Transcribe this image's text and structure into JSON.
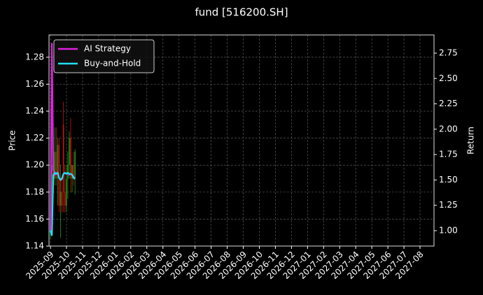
{
  "chart_data": {
    "type": "candlestick",
    "title": "fund [516200.SH]",
    "ylabel": "Price",
    "y2label": "Return",
    "x": [
      0.0,
      0.09,
      0.18,
      0.27,
      0.36,
      0.45,
      0.54,
      0.63,
      0.72,
      0.81,
      0.9,
      0.99,
      1.08,
      1.17,
      1.26,
      1.35,
      1.44,
      1.53
    ],
    "open": [
      1.15,
      1.16,
      1.2,
      1.19,
      1.21,
      1.19,
      1.215,
      1.17,
      1.18,
      1.23,
      1.18,
      1.17,
      1.19,
      1.2,
      1.22,
      1.19,
      1.2,
      1.19
    ],
    "high": [
      1.165,
      1.27,
      1.205,
      1.228,
      1.228,
      1.22,
      1.22,
      1.2,
      1.19,
      1.247,
      1.2,
      1.2,
      1.21,
      1.225,
      1.235,
      1.2,
      1.21,
      1.212
    ],
    "low": [
      1.145,
      1.155,
      1.18,
      1.185,
      1.185,
      1.17,
      1.165,
      1.146,
      1.165,
      1.165,
      1.165,
      1.165,
      1.175,
      1.19,
      1.18,
      1.18,
      1.185,
      1.178
    ],
    "close": [
      1.16,
      1.2,
      1.19,
      1.21,
      1.19,
      1.215,
      1.17,
      1.18,
      1.17,
      1.18,
      1.17,
      1.19,
      1.2,
      1.22,
      1.19,
      1.2,
      1.19,
      1.21
    ],
    "up_color": "#1a9a1a",
    "down_color": "#d01010",
    "series": [
      {
        "name": "AI Strategy",
        "color": "#e020e0",
        "axis": "y2",
        "values": [
          1.0,
          2.85,
          1.6,
          1.55,
          1.57,
          1.56,
          1.52,
          1.5,
          1.52,
          1.56,
          1.57,
          1.56,
          1.57,
          1.55,
          1.56,
          1.55,
          1.53,
          1.52
        ]
      },
      {
        "name": "Buy-and-Hold",
        "color": "#20e0f0",
        "axis": "y2",
        "values": [
          1.0,
          0.95,
          1.55,
          1.57,
          1.56,
          1.57,
          1.52,
          1.5,
          1.51,
          1.56,
          1.57,
          1.56,
          1.57,
          1.56,
          1.56,
          1.55,
          1.52,
          1.51
        ]
      }
    ],
    "xlim": [
      -0.09,
      23.87
    ],
    "xticks": [
      {
        "value": 0,
        "label": "2025-09"
      },
      {
        "value": 1,
        "label": "2025-10"
      },
      {
        "value": 2,
        "label": "2025-11"
      },
      {
        "value": 3,
        "label": "2025-12"
      },
      {
        "value": 4,
        "label": "2026-01"
      },
      {
        "value": 5,
        "label": "2026-02"
      },
      {
        "value": 6,
        "label": "2026-03"
      },
      {
        "value": 7,
        "label": "2026-04"
      },
      {
        "value": 8,
        "label": "2026-05"
      },
      {
        "value": 9,
        "label": "2026-06"
      },
      {
        "value": 10,
        "label": "2026-07"
      },
      {
        "value": 11,
        "label": "2026-08"
      },
      {
        "value": 12,
        "label": "2026-09"
      },
      {
        "value": 13,
        "label": "2026-10"
      },
      {
        "value": 14,
        "label": "2026-11"
      },
      {
        "value": 15,
        "label": "2026-12"
      },
      {
        "value": 16,
        "label": "2027-01"
      },
      {
        "value": 17,
        "label": "2027-02"
      },
      {
        "value": 18,
        "label": "2027-03"
      },
      {
        "value": 19,
        "label": "2027-04"
      },
      {
        "value": 20,
        "label": "2027-05"
      },
      {
        "value": 21,
        "label": "2027-06"
      },
      {
        "value": 22,
        "label": "2027-07"
      },
      {
        "value": 23,
        "label": "2027-08"
      }
    ],
    "ylim": [
      1.14,
      1.2965
    ],
    "yticks": [
      1.14,
      1.16,
      1.18,
      {
        "value": 1.2,
        "label": "1.20"
      },
      1.22,
      1.24,
      1.26,
      1.28
    ],
    "y2lim": [
      0.848,
      2.929
    ],
    "y2ticks": [
      {
        "value": 1,
        "label": "1.00"
      },
      1.25,
      {
        "value": 1.5,
        "label": "1.50"
      },
      1.75,
      {
        "value": 2,
        "label": "2.00"
      },
      2.25,
      {
        "value": 2.5,
        "label": "2.50"
      },
      2.75
    ],
    "grid": true,
    "legend": "upper left"
  }
}
